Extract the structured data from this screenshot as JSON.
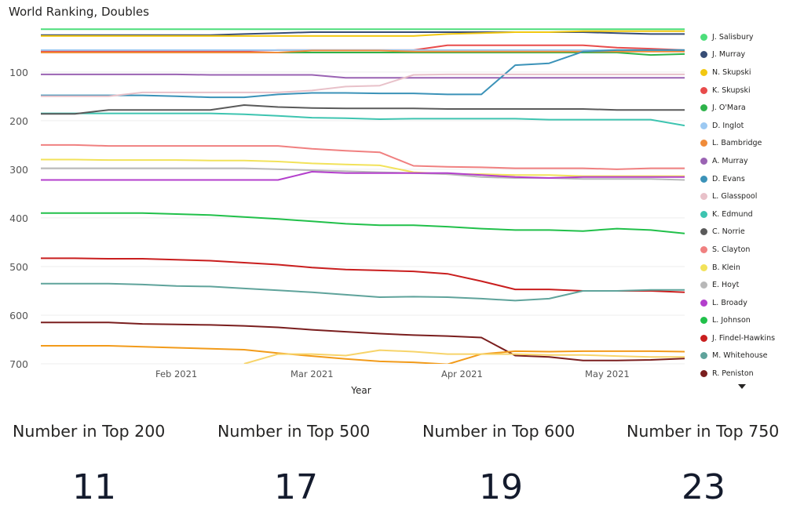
{
  "chart_data": {
    "type": "line",
    "title": "World Ranking, Doubles",
    "xlabel": "Year",
    "ylabel": "",
    "y_reversed": true,
    "ylim": [
      10,
      700
    ],
    "xlim": [
      "2021-01-04",
      "2021-05-17"
    ],
    "y_ticks": [
      100,
      200,
      300,
      400,
      500,
      600,
      700
    ],
    "x_ticks": [
      {
        "date": "2021-02-01",
        "label": "Feb 2021"
      },
      {
        "date": "2021-03-01",
        "label": "Mar 2021"
      },
      {
        "date": "2021-04-01",
        "label": "Apr 2021"
      },
      {
        "date": "2021-05-01",
        "label": "May 2021"
      }
    ],
    "x": [
      "2021-01-04",
      "2021-01-11",
      "2021-01-18",
      "2021-01-25",
      "2021-02-01",
      "2021-02-08",
      "2021-02-15",
      "2021-02-22",
      "2021-03-01",
      "2021-03-08",
      "2021-03-15",
      "2021-03-22",
      "2021-03-29",
      "2021-04-05",
      "2021-04-12",
      "2021-04-19",
      "2021-04-26",
      "2021-05-03",
      "2021-05-10",
      "2021-05-17"
    ],
    "series": [
      {
        "name": "J. Salisbury",
        "color": "#4cde7a",
        "values": [
          12,
          12,
          12,
          12,
          12,
          12,
          12,
          12,
          12,
          12,
          12,
          12,
          12,
          12,
          12,
          12,
          12,
          12,
          12,
          12
        ]
      },
      {
        "name": "J. Murray",
        "color": "#374d76",
        "values": [
          24,
          24,
          24,
          24,
          24,
          24,
          22,
          20,
          18,
          18,
          18,
          18,
          18,
          18,
          18,
          18,
          18,
          20,
          22,
          22
        ]
      },
      {
        "name": "N. Skupski",
        "color": "#f2c811",
        "values": [
          26,
          26,
          26,
          26,
          26,
          26,
          26,
          26,
          26,
          26,
          26,
          26,
          22,
          20,
          18,
          18,
          16,
          16,
          16,
          16
        ]
      },
      {
        "name": "K. Skupski",
        "color": "#e84b4b",
        "values": [
          57,
          57,
          57,
          57,
          57,
          57,
          57,
          55,
          55,
          55,
          55,
          55,
          45,
          45,
          45,
          45,
          45,
          50,
          52,
          55
        ]
      },
      {
        "name": "J. O'Mara",
        "color": "#2eb34a",
        "values": [
          60,
          60,
          60,
          60,
          60,
          60,
          60,
          60,
          60,
          60,
          60,
          60,
          60,
          60,
          60,
          60,
          60,
          60,
          65,
          63
        ]
      },
      {
        "name": "D. Inglot",
        "color": "#9cc9f2",
        "values": [
          55,
          55,
          55,
          55,
          55,
          55,
          55,
          55,
          55,
          55,
          55,
          55,
          55,
          55,
          55,
          55,
          55,
          55,
          55,
          55
        ]
      },
      {
        "name": "L. Bambridge",
        "color": "#f08c3a",
        "values": [
          60,
          60,
          60,
          60,
          60,
          60,
          60,
          60,
          56,
          56,
          56,
          58,
          58,
          58,
          58,
          58,
          58,
          58,
          58,
          58
        ]
      },
      {
        "name": "A. Murray",
        "color": "#9a63b3",
        "values": [
          105,
          105,
          105,
          105,
          105,
          106,
          106,
          106,
          106,
          112,
          112,
          112,
          112,
          112,
          112,
          112,
          112,
          112,
          112,
          112
        ]
      },
      {
        "name": "D. Evans",
        "color": "#3b92b8",
        "values": [
          148,
          148,
          148,
          148,
          150,
          152,
          152,
          146,
          143,
          143,
          144,
          144,
          146,
          146,
          86,
          82,
          58,
          55,
          55,
          55
        ]
      },
      {
        "name": "L. Glasspool",
        "color": "#e8c1c9",
        "values": [
          150,
          150,
          150,
          142,
          142,
          142,
          142,
          142,
          138,
          130,
          128,
          106,
          105,
          105,
          105,
          105,
          105,
          105,
          105,
          105
        ]
      },
      {
        "name": "K. Edmund",
        "color": "#3dc4b0",
        "values": [
          185,
          185,
          185,
          185,
          185,
          185,
          187,
          190,
          194,
          195,
          197,
          196,
          196,
          196,
          196,
          198,
          198,
          198,
          198,
          210
        ]
      },
      {
        "name": "C. Norrie",
        "color": "#5a5a5a",
        "values": [
          186,
          186,
          178,
          178,
          178,
          178,
          168,
          172,
          174,
          175,
          175,
          175,
          176,
          176,
          176,
          176,
          176,
          178,
          178,
          178
        ]
      },
      {
        "name": "S. Clayton",
        "color": "#f08080",
        "values": [
          250,
          250,
          252,
          252,
          252,
          252,
          252,
          252,
          258,
          262,
          265,
          293,
          295,
          296,
          298,
          298,
          298,
          300,
          298,
          298
        ]
      },
      {
        "name": "B. Klein",
        "color": "#f2e25a",
        "values": [
          280,
          280,
          281,
          281,
          281,
          282,
          282,
          284,
          288,
          290,
          292,
          306,
          310,
          310,
          312,
          312,
          314,
          314,
          314,
          314
        ]
      },
      {
        "name": "E. Hoyt",
        "color": "#b8b8b8",
        "values": [
          298,
          298,
          298,
          298,
          298,
          298,
          298,
          300,
          302,
          304,
          306,
          308,
          310,
          316,
          318,
          318,
          320,
          320,
          320,
          322
        ]
      },
      {
        "name": "L. Broady",
        "color": "#b33fcc",
        "values": [
          322,
          322,
          322,
          322,
          322,
          322,
          322,
          322,
          305,
          308,
          308,
          308,
          308,
          312,
          316,
          318,
          316,
          316,
          316,
          316
        ]
      },
      {
        "name": "L. Johnson",
        "color": "#21c04a",
        "values": [
          390,
          390,
          390,
          390,
          392,
          394,
          398,
          402,
          407,
          412,
          415,
          415,
          418,
          422,
          425,
          425,
          427,
          422,
          425,
          432
        ]
      },
      {
        "name": "J. Findel-Hawkins",
        "color": "#c91e1e",
        "values": [
          483,
          483,
          484,
          484,
          486,
          488,
          492,
          496,
          502,
          506,
          508,
          510,
          515,
          530,
          547,
          547,
          550,
          550,
          550,
          553
        ]
      },
      {
        "name": "M. Whitehouse",
        "color": "#5fa39b",
        "values": [
          535,
          535,
          535,
          537,
          540,
          541,
          545,
          549,
          553,
          558,
          563,
          562,
          563,
          566,
          570,
          566,
          550,
          550,
          548,
          548
        ]
      },
      {
        "name": "R. Peniston",
        "color": "#7a1e1e",
        "values": [
          615,
          615,
          615,
          618,
          619,
          620,
          622,
          625,
          630,
          634,
          638,
          641,
          643,
          646,
          683,
          686,
          693,
          693,
          692,
          689
        ]
      },
      {
        "name": "",
        "color": "#f29b1a",
        "values": [
          663,
          663,
          663,
          665,
          667,
          669,
          671,
          678,
          684,
          690,
          695,
          697,
          701,
          680,
          674,
          675,
          674,
          674,
          674,
          675
        ]
      },
      {
        "name": "",
        "color": "#f7d46a",
        "values": [
          null,
          null,
          null,
          null,
          null,
          null,
          700,
          680,
          680,
          683,
          672,
          675,
          680,
          680,
          680,
          682,
          682,
          684,
          686,
          686
        ]
      }
    ]
  },
  "legend": {
    "items": [
      {
        "label": "J. Salisbury",
        "color": "#4cde7a"
      },
      {
        "label": "J. Murray",
        "color": "#374d76"
      },
      {
        "label": "N. Skupski",
        "color": "#f2c811"
      },
      {
        "label": "K. Skupski",
        "color": "#e84b4b"
      },
      {
        "label": "J. O'Mara",
        "color": "#2eb34a"
      },
      {
        "label": "D. Inglot",
        "color": "#9cc9f2"
      },
      {
        "label": "L. Bambridge",
        "color": "#f08c3a"
      },
      {
        "label": "A. Murray",
        "color": "#9a63b3"
      },
      {
        "label": "D. Evans",
        "color": "#3b92b8"
      },
      {
        "label": "L. Glasspool",
        "color": "#e8c1c9"
      },
      {
        "label": "K. Edmund",
        "color": "#3dc4b0"
      },
      {
        "label": "C. Norrie",
        "color": "#5a5a5a"
      },
      {
        "label": "S. Clayton",
        "color": "#f08080"
      },
      {
        "label": "B. Klein",
        "color": "#f2e25a"
      },
      {
        "label": "E. Hoyt",
        "color": "#b8b8b8"
      },
      {
        "label": "L. Broady",
        "color": "#b33fcc"
      },
      {
        "label": "L. Johnson",
        "color": "#21c04a"
      },
      {
        "label": "J. Findel-Hawkins",
        "color": "#c91e1e"
      },
      {
        "label": "M. Whitehouse",
        "color": "#5fa39b"
      },
      {
        "label": "R. Peniston",
        "color": "#7a1e1e"
      }
    ],
    "more_icon": "caret-down-icon"
  },
  "kpis": [
    {
      "label": "Number in Top 200",
      "value": "11"
    },
    {
      "label": "Number in Top 500",
      "value": "17"
    },
    {
      "label": "Number in Top 600",
      "value": "19"
    },
    {
      "label": "Number in Top 750",
      "value": "23"
    }
  ]
}
